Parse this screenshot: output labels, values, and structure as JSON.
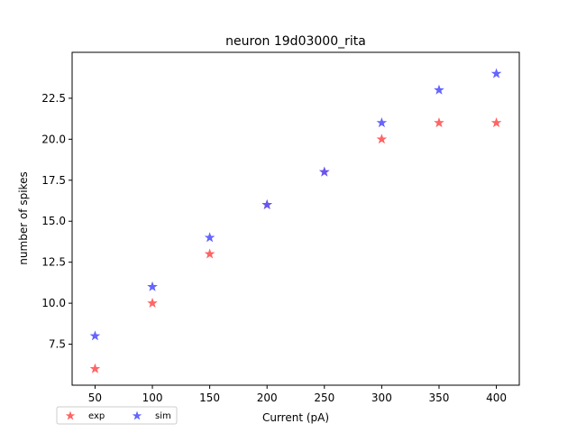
{
  "chart_data": {
    "type": "scatter",
    "title": "neuron 19d03000_rita",
    "xlabel": "Current (pA)",
    "ylabel": "number of spikes",
    "xlim": [
      30,
      420
    ],
    "ylim": [
      5.0,
      25.3
    ],
    "xticks": [
      "50",
      "100",
      "150",
      "200",
      "250",
      "300",
      "350",
      "400"
    ],
    "yticks": [
      "7.5",
      "10.0",
      "12.5",
      "15.0",
      "17.5",
      "20.0",
      "22.5"
    ],
    "marker": "star",
    "legend": {
      "placement": "lower-left-outside",
      "ncol": 2
    },
    "series": [
      {
        "name": "exp",
        "color": "#ff5555",
        "x": [
          50,
          100,
          150,
          200,
          250,
          300,
          350,
          400
        ],
        "y": [
          6,
          10,
          13,
          16,
          18,
          20,
          21,
          21
        ]
      },
      {
        "name": "sim",
        "color": "#5555ff",
        "x": [
          50,
          100,
          150,
          200,
          250,
          300,
          350,
          400
        ],
        "y": [
          8,
          11,
          14,
          16,
          18,
          21,
          23,
          24
        ]
      }
    ]
  }
}
